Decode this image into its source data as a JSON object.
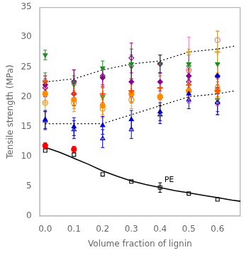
{
  "chart_data": {
    "type": "scatter",
    "xlabel": "Volume fraction of lignin",
    "ylabel": "Tensile strength (MPa)",
    "xlim": [
      -0.02,
      0.68
    ],
    "ylim": [
      0,
      35
    ],
    "xticks": [
      {
        "value": 0.0,
        "label": "0.0"
      },
      0.1,
      0.2,
      0.3,
      0.4,
      0.5,
      0.6
    ],
    "yticks": [
      0,
      5,
      10,
      15,
      20,
      25,
      30,
      35
    ],
    "grid": false,
    "annotations": [
      {
        "text": "PE",
        "x": 0.415,
        "y": 5.4
      }
    ],
    "series": [
      {
        "type": "line",
        "line_style": "dotted",
        "color": "#000000",
        "x": [
          0.0,
          0.1,
          0.2,
          0.3,
          0.4,
          0.5,
          0.6,
          0.66
        ],
        "values": [
          22.5,
          23.0,
          24.5,
          25.5,
          26.0,
          27.5,
          28.0,
          28.5
        ]
      },
      {
        "type": "line",
        "line_style": "dotted",
        "color": "#000000",
        "x": [
          0.0,
          0.1,
          0.2,
          0.3,
          0.4,
          0.5,
          0.6,
          0.66
        ],
        "values": [
          15.5,
          15.5,
          15.5,
          17.0,
          18.5,
          20.0,
          20.5,
          21.0
        ]
      },
      {
        "type": "line",
        "line_style": "solid",
        "color": "#000000",
        "x": [
          0.0,
          0.02,
          0.05,
          0.08,
          0.1,
          0.15,
          0.2,
          0.25,
          0.3,
          0.35,
          0.4,
          0.45,
          0.5,
          0.55,
          0.6,
          0.65,
          0.68
        ],
        "values": [
          11.5,
          11.2,
          10.7,
          10.1,
          9.7,
          8.7,
          7.6,
          6.7,
          5.9,
          5.3,
          4.8,
          4.3,
          3.9,
          3.5,
          3.1,
          2.7,
          2.5
        ]
      },
      {
        "type": "scatter",
        "marker": "square_open",
        "color": "#000000",
        "x": [
          0.0,
          0.1,
          0.2,
          0.3,
          0.4,
          0.5,
          0.6
        ],
        "values": [
          11.0,
          10.3,
          7.0,
          5.8,
          4.8,
          3.8,
          2.8
        ],
        "yerr": [
          0.0,
          0.0,
          0.0,
          0.0,
          0.8,
          0.0,
          0.0
        ]
      },
      {
        "type": "scatter",
        "marker": "triangle_down",
        "color": "#228B22",
        "x": [
          0.0,
          0.1,
          0.2,
          0.3,
          0.4,
          0.5,
          0.6
        ],
        "values": [
          27.0,
          22.5,
          24.8,
          25.5,
          25.5,
          25.5,
          25.5
        ],
        "yerr": [
          0.8,
          2.0,
          1.2,
          2.5,
          1.5,
          2.0,
          2.5
        ]
      },
      {
        "type": "scatter",
        "marker": "triangle_down_open",
        "color": "#228B22",
        "x": [
          0.0,
          0.1,
          0.2,
          0.3,
          0.4,
          0.5,
          0.6
        ],
        "values": [
          22.5,
          22.0,
          20.0,
          25.0,
          25.5,
          25.0,
          19.5
        ],
        "yerr": [
          1.5,
          1.5,
          1.5,
          2.0,
          1.5,
          2.0,
          2.5
        ]
      },
      {
        "type": "scatter",
        "marker": "diamond",
        "color": "#8B008B",
        "x": [
          0.0,
          0.1,
          0.2,
          0.3,
          0.4,
          0.5,
          0.6
        ],
        "values": [
          22.0,
          20.5,
          23.2,
          22.5,
          22.5,
          23.5,
          23.5
        ],
        "yerr": [
          1.5,
          2.0,
          1.5,
          2.5,
          1.5,
          2.0,
          2.0
        ]
      },
      {
        "type": "scatter",
        "marker": "diamond_open",
        "color": "#8B008B",
        "x": [
          0.0,
          0.1,
          0.2,
          0.3,
          0.4,
          0.5,
          0.6
        ],
        "values": [
          21.5,
          22.5,
          23.5,
          26.5,
          25.5,
          22.5,
          19.0
        ],
        "yerr": [
          1.5,
          2.0,
          1.5,
          2.5,
          1.5,
          1.5,
          1.5
        ]
      },
      {
        "type": "scatter",
        "marker": "circle",
        "color": "#FF8C00",
        "x": [
          0.0,
          0.1,
          0.2,
          0.3,
          0.4,
          0.5,
          0.6
        ],
        "values": [
          20.5,
          19.5,
          18.5,
          20.5,
          20.0,
          21.0,
          21.0
        ],
        "yerr": [
          1.5,
          1.5,
          1.5,
          1.5,
          1.5,
          1.5,
          1.5
        ]
      },
      {
        "type": "scatter",
        "marker": "circle_open",
        "color": "#FF8C00",
        "x": [
          0.0,
          0.1,
          0.2,
          0.3,
          0.4,
          0.5,
          0.6
        ],
        "values": [
          19.0,
          19.0,
          18.0,
          19.5,
          20.0,
          21.0,
          21.5
        ],
        "yerr": [
          1.5,
          1.5,
          1.5,
          1.5,
          1.5,
          1.5,
          1.5
        ]
      },
      {
        "type": "scatter",
        "marker": "triangle_up",
        "color": "#0000CC",
        "x": [
          0.0,
          0.1,
          0.2,
          0.3,
          0.4,
          0.5,
          0.6
        ],
        "values": [
          16.2,
          15.0,
          15.2,
          16.2,
          17.5,
          20.5,
          23.5
        ],
        "yerr": [
          1.5,
          1.5,
          1.5,
          1.5,
          1.5,
          1.5,
          2.0
        ]
      },
      {
        "type": "scatter",
        "marker": "triangle_up_open",
        "color": "#0000CC",
        "x": [
          0.0,
          0.1,
          0.2,
          0.3,
          0.4,
          0.5,
          0.6
        ],
        "values": [
          16.0,
          14.5,
          13.0,
          14.5,
          17.0,
          19.5,
          19.0
        ],
        "yerr": [
          1.5,
          1.5,
          1.5,
          1.5,
          1.5,
          1.5,
          2.0
        ]
      },
      {
        "type": "scatter",
        "marker": "circle",
        "color": "#FF0000",
        "x": [
          0.0
        ],
        "values": [
          11.8
        ],
        "yerr": [
          0.5
        ]
      },
      {
        "type": "scatter",
        "marker": "circle",
        "color": "#FF0000",
        "x": [
          0.1
        ],
        "values": [
          11.2
        ],
        "yerr": [
          0.5
        ]
      },
      {
        "type": "scatter",
        "marker": "circle_open",
        "color": "#FF69B4",
        "x": [
          0.5,
          0.6
        ],
        "values": [
          24.5,
          29.5
        ],
        "yerr": [
          5.5,
          1.5
        ]
      },
      {
        "type": "scatter",
        "marker": "plus",
        "color": "#DAA520",
        "x": [
          0.5,
          0.6
        ],
        "values": [
          27.5,
          27.5
        ],
        "yerr": [
          0.5,
          3.5
        ]
      },
      {
        "type": "scatter",
        "marker": "plus",
        "color": "#FF4500",
        "x": [
          0.0,
          0.1,
          0.2,
          0.3,
          0.4,
          0.5,
          0.6
        ],
        "values": [
          22.5,
          20.5,
          20.5,
          21.0,
          21.5,
          22.0,
          21.0
        ],
        "yerr": [
          1.0,
          2.0,
          1.5,
          2.0,
          2.0,
          2.5,
          2.5
        ]
      }
    ]
  }
}
